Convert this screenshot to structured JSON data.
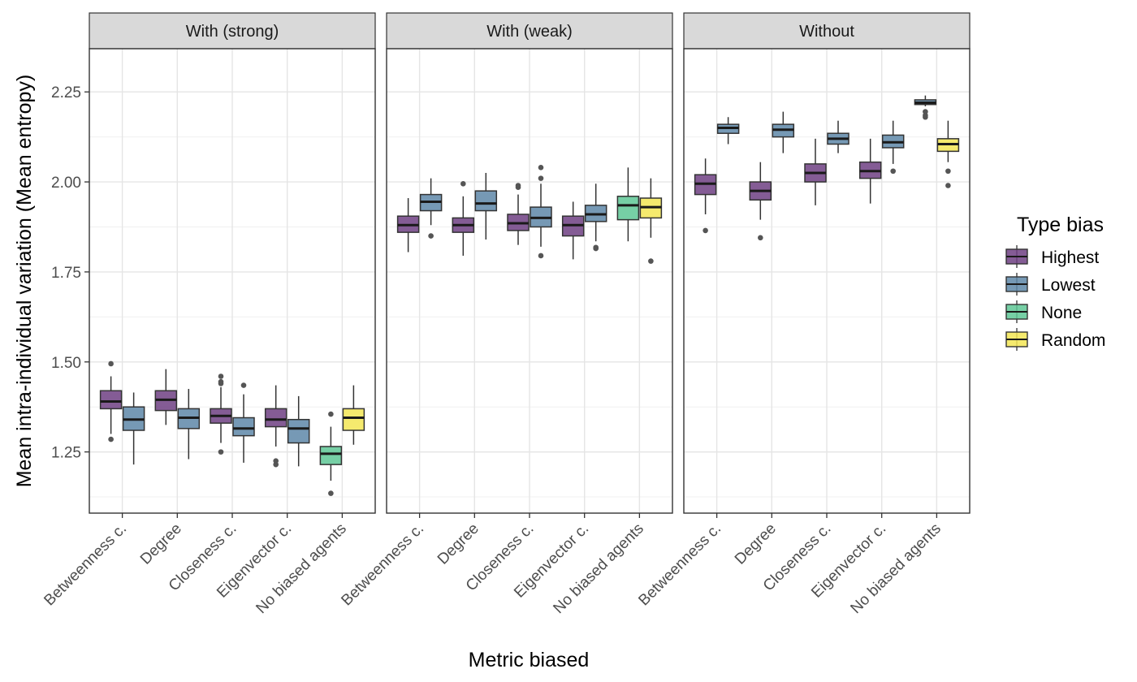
{
  "chart_data": {
    "type": "boxplot",
    "xlabel": "Metric biased",
    "ylabel": "Mean intra-individual variation (Mean entropy)",
    "ylim": [
      1.08,
      2.37
    ],
    "yticks": [
      1.25,
      1.5,
      1.75,
      2.0,
      2.25
    ],
    "ytick_labels": [
      "1.25",
      "1.50",
      "1.75",
      "2.00",
      "2.25"
    ],
    "grid": true,
    "categories": [
      "Betweenness c.",
      "Degree",
      "Closeness c.",
      "Eigenvector c.",
      "No biased agents"
    ],
    "legend": {
      "title": "Type bias",
      "position": "right",
      "items": [
        {
          "name": "Highest",
          "color": "#6f3f82"
        },
        {
          "name": "Lowest",
          "color": "#5e87a8"
        },
        {
          "name": "None",
          "color": "#5ec795"
        },
        {
          "name": "Random",
          "color": "#f3e655"
        }
      ]
    },
    "panels": [
      {
        "title": "With (strong)",
        "boxes": [
          {
            "category": "Betweenness c.",
            "group": "Highest",
            "whisker_low": 1.3,
            "q1": 1.37,
            "median": 1.39,
            "q3": 1.42,
            "whisker_high": 1.46,
            "outliers": [
              1.285,
              1.495
            ]
          },
          {
            "category": "Betweenness c.",
            "group": "Lowest",
            "whisker_low": 1.215,
            "q1": 1.31,
            "median": 1.34,
            "q3": 1.375,
            "whisker_high": 1.415,
            "outliers": []
          },
          {
            "category": "Degree",
            "group": "Highest",
            "whisker_low": 1.325,
            "q1": 1.365,
            "median": 1.395,
            "q3": 1.42,
            "whisker_high": 1.48,
            "outliers": []
          },
          {
            "category": "Degree",
            "group": "Lowest",
            "whisker_low": 1.23,
            "q1": 1.315,
            "median": 1.345,
            "q3": 1.37,
            "whisker_high": 1.425,
            "outliers": []
          },
          {
            "category": "Closeness c.",
            "group": "Highest",
            "whisker_low": 1.275,
            "q1": 1.33,
            "median": 1.35,
            "q3": 1.37,
            "whisker_high": 1.43,
            "outliers": [
              1.25,
              1.44,
              1.445,
              1.46
            ]
          },
          {
            "category": "Closeness c.",
            "group": "Lowest",
            "whisker_low": 1.22,
            "q1": 1.295,
            "median": 1.315,
            "q3": 1.345,
            "whisker_high": 1.41,
            "outliers": [
              1.435
            ]
          },
          {
            "category": "Eigenvector c.",
            "group": "Highest",
            "whisker_low": 1.265,
            "q1": 1.32,
            "median": 1.34,
            "q3": 1.37,
            "whisker_high": 1.435,
            "outliers": [
              1.215,
              1.225
            ]
          },
          {
            "category": "Eigenvector c.",
            "group": "Lowest",
            "whisker_low": 1.21,
            "q1": 1.275,
            "median": 1.315,
            "q3": 1.34,
            "whisker_high": 1.405,
            "outliers": []
          },
          {
            "category": "No biased agents",
            "group": "None",
            "whisker_low": 1.17,
            "q1": 1.215,
            "median": 1.245,
            "q3": 1.265,
            "whisker_high": 1.32,
            "outliers": [
              1.135,
              1.355
            ]
          },
          {
            "category": "No biased agents",
            "group": "Random",
            "whisker_low": 1.27,
            "q1": 1.31,
            "median": 1.345,
            "q3": 1.37,
            "whisker_high": 1.435,
            "outliers": []
          }
        ]
      },
      {
        "title": "With (weak)",
        "boxes": [
          {
            "category": "Betweenness c.",
            "group": "Highest",
            "whisker_low": 1.805,
            "q1": 1.86,
            "median": 1.88,
            "q3": 1.905,
            "whisker_high": 1.955,
            "outliers": []
          },
          {
            "category": "Betweenness c.",
            "group": "Lowest",
            "whisker_low": 1.88,
            "q1": 1.92,
            "median": 1.945,
            "q3": 1.965,
            "whisker_high": 2.01,
            "outliers": [
              1.85
            ]
          },
          {
            "category": "Degree",
            "group": "Highest",
            "whisker_low": 1.795,
            "q1": 1.86,
            "median": 1.88,
            "q3": 1.9,
            "whisker_high": 1.96,
            "outliers": [
              1.995
            ]
          },
          {
            "category": "Degree",
            "group": "Lowest",
            "whisker_low": 1.84,
            "q1": 1.92,
            "median": 1.94,
            "q3": 1.975,
            "whisker_high": 2.025,
            "outliers": []
          },
          {
            "category": "Closeness c.",
            "group": "Highest",
            "whisker_low": 1.825,
            "q1": 1.865,
            "median": 1.885,
            "q3": 1.91,
            "whisker_high": 1.965,
            "outliers": [
              1.985,
              1.99
            ]
          },
          {
            "category": "Closeness c.",
            "group": "Lowest",
            "whisker_low": 1.82,
            "q1": 1.875,
            "median": 1.9,
            "q3": 1.93,
            "whisker_high": 1.995,
            "outliers": [
              1.795,
              2.01,
              2.04
            ]
          },
          {
            "category": "Eigenvector c.",
            "group": "Highest",
            "whisker_low": 1.785,
            "q1": 1.85,
            "median": 1.88,
            "q3": 1.905,
            "whisker_high": 1.945,
            "outliers": []
          },
          {
            "category": "Eigenvector c.",
            "group": "Lowest",
            "whisker_low": 1.835,
            "q1": 1.89,
            "median": 1.91,
            "q3": 1.935,
            "whisker_high": 1.995,
            "outliers": [
              1.815,
              1.818
            ]
          },
          {
            "category": "No biased agents",
            "group": "None",
            "whisker_low": 1.835,
            "q1": 1.895,
            "median": 1.935,
            "q3": 1.96,
            "whisker_high": 2.04,
            "outliers": []
          },
          {
            "category": "No biased agents",
            "group": "Random",
            "whisker_low": 1.845,
            "q1": 1.9,
            "median": 1.93,
            "q3": 1.955,
            "whisker_high": 2.01,
            "outliers": [
              1.78
            ]
          }
        ]
      },
      {
        "title": "Without",
        "boxes": [
          {
            "category": "Betweenness c.",
            "group": "Highest",
            "whisker_low": 1.91,
            "q1": 1.965,
            "median": 1.995,
            "q3": 2.02,
            "whisker_high": 2.065,
            "outliers": [
              1.865
            ]
          },
          {
            "category": "Betweenness c.",
            "group": "Lowest",
            "whisker_low": 2.105,
            "q1": 2.135,
            "median": 2.15,
            "q3": 2.16,
            "whisker_high": 2.18,
            "outliers": []
          },
          {
            "category": "Degree",
            "group": "Highest",
            "whisker_low": 1.895,
            "q1": 1.95,
            "median": 1.975,
            "q3": 2.0,
            "whisker_high": 2.055,
            "outliers": [
              1.845
            ]
          },
          {
            "category": "Degree",
            "group": "Lowest",
            "whisker_low": 2.08,
            "q1": 2.125,
            "median": 2.145,
            "q3": 2.16,
            "whisker_high": 2.195,
            "outliers": []
          },
          {
            "category": "Closeness c.",
            "group": "Highest",
            "whisker_low": 1.935,
            "q1": 2.0,
            "median": 2.025,
            "q3": 2.05,
            "whisker_high": 2.12,
            "outliers": []
          },
          {
            "category": "Closeness c.",
            "group": "Lowest",
            "whisker_low": 2.08,
            "q1": 2.105,
            "median": 2.12,
            "q3": 2.135,
            "whisker_high": 2.17,
            "outliers": []
          },
          {
            "category": "Eigenvector c.",
            "group": "Highest",
            "whisker_low": 1.94,
            "q1": 2.01,
            "median": 2.03,
            "q3": 2.055,
            "whisker_high": 2.12,
            "outliers": []
          },
          {
            "category": "Eigenvector c.",
            "group": "Lowest",
            "whisker_low": 2.05,
            "q1": 2.095,
            "median": 2.11,
            "q3": 2.13,
            "whisker_high": 2.17,
            "outliers": [
              2.03
            ]
          },
          {
            "category": "No biased agents",
            "group": "Lowest",
            "whisker_low": 2.21,
            "q1": 2.215,
            "median": 2.22,
            "q3": 2.228,
            "whisker_high": 2.24,
            "outliers": [
              2.18,
              2.185,
              2.195
            ]
          },
          {
            "category": "No biased agents",
            "group": "Random",
            "whisker_low": 2.055,
            "q1": 2.085,
            "median": 2.105,
            "q3": 2.12,
            "whisker_high": 2.17,
            "outliers": [
              1.99,
              2.03
            ]
          }
        ]
      }
    ]
  }
}
